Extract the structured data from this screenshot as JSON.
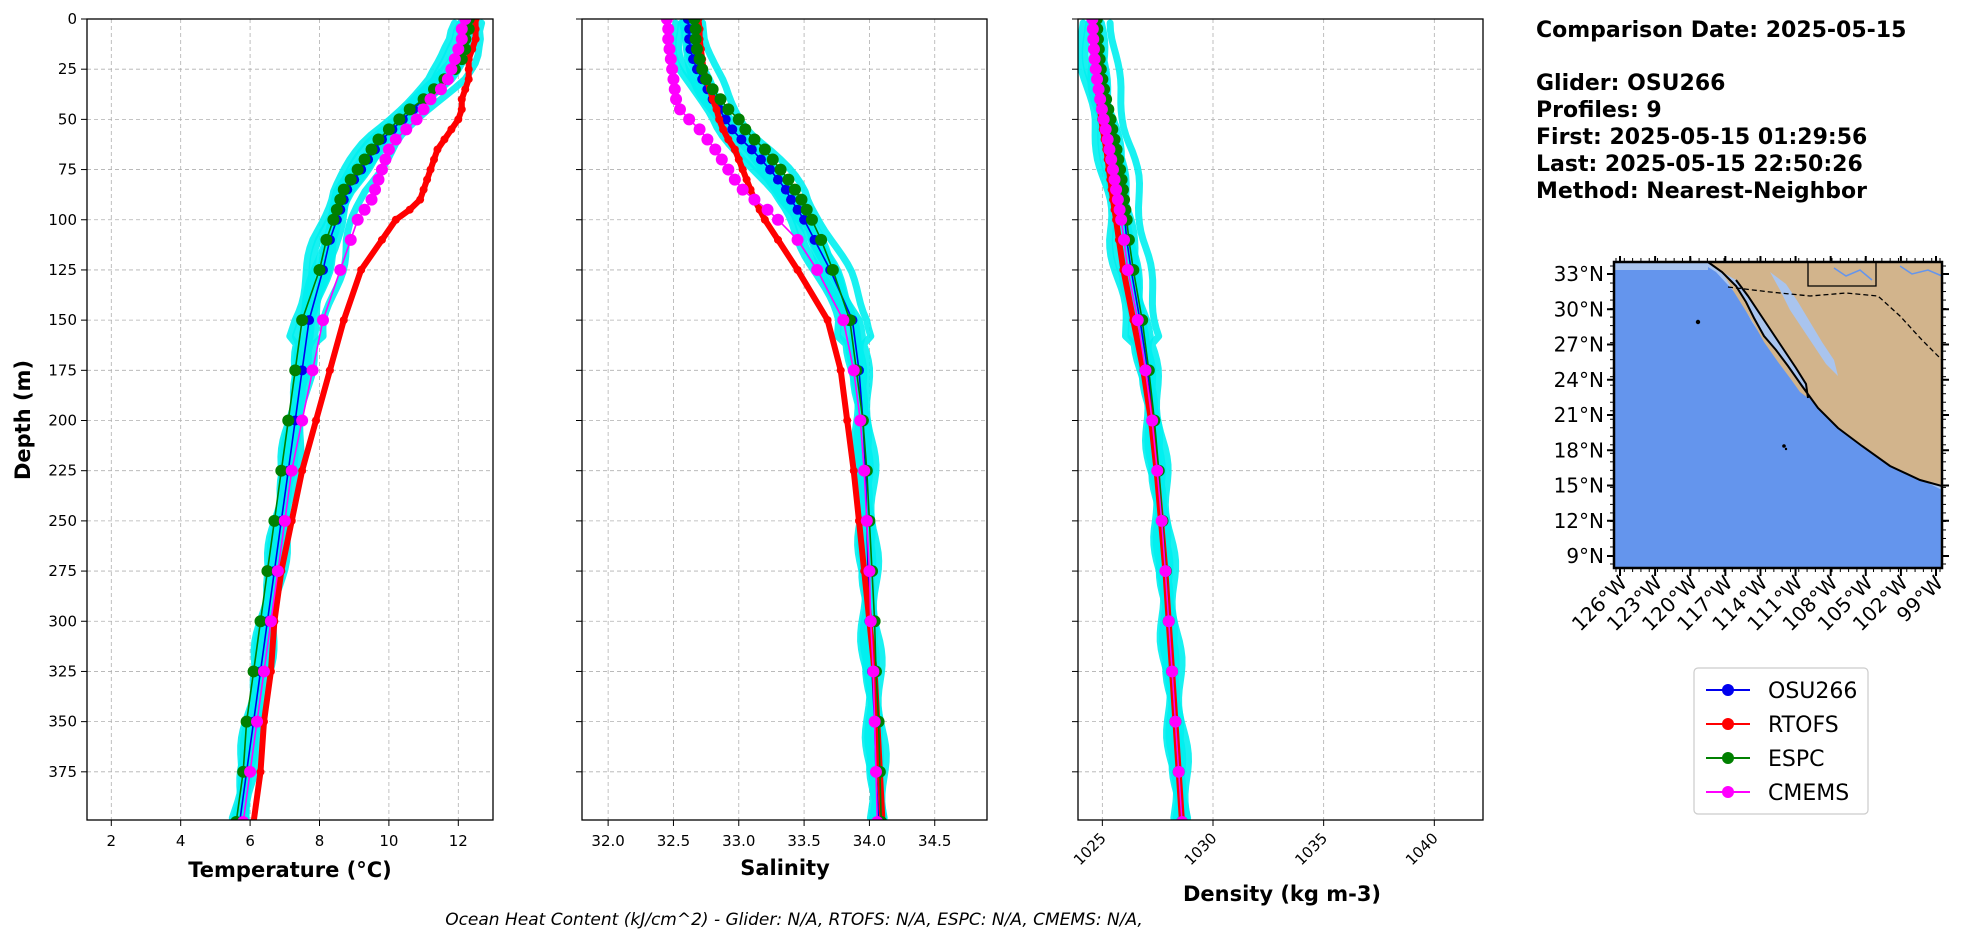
{
  "info": {
    "comparison_date": "Comparison Date: 2025-05-15",
    "glider": "Glider: OSU266",
    "profiles": "Profiles: 9",
    "first": "First: 2025-05-15 01:29:56",
    "last": "Last: 2025-05-15 22:50:26",
    "method": "Method: Nearest-Neighbor"
  },
  "footer": "Ocean Heat Content (kJ/cm^2) - Glider: N/A,  RTOFS: N/A,  ESPC: N/A,  CMEMS: N/A,",
  "colors": {
    "glider_raw": "#00f0f0",
    "OSU266": "#0000ee",
    "RTOFS": "#ff0000",
    "ESPC": "#008000",
    "CMEMS": "#ff00ff",
    "ocean": "#6495ed",
    "shelf": "#a9c4ee",
    "land": "#d2b48c"
  },
  "map": {
    "lat_ticks": [
      "33°N",
      "30°N",
      "27°N",
      "24°N",
      "21°N",
      "18°N",
      "15°N",
      "12°N",
      "9°N"
    ],
    "lon_ticks": [
      "126°W",
      "123°W",
      "120°W",
      "117°W",
      "114°W",
      "111°W",
      "108°W",
      "105°W",
      "102°W",
      "99°W"
    ]
  },
  "legend": [
    "OSU266",
    "RTOFS",
    "ESPC",
    "CMEMS"
  ],
  "chart_data": [
    {
      "type": "line",
      "xlabel": "Temperature (°C)",
      "ylabel": "Depth (m)",
      "xlim": [
        1.3,
        13.0
      ],
      "ylim": [
        399,
        0
      ],
      "xticks": [
        2,
        4,
        6,
        8,
        10,
        12
      ],
      "yticks": [
        0,
        25,
        50,
        75,
        100,
        125,
        150,
        175,
        200,
        225,
        250,
        275,
        300,
        325,
        350,
        375
      ],
      "grid": true,
      "depth": [
        0,
        5,
        10,
        15,
        20,
        25,
        30,
        35,
        40,
        45,
        50,
        55,
        60,
        65,
        70,
        75,
        80,
        85,
        90,
        95,
        100,
        110,
        125,
        150,
        175,
        200,
        225,
        250,
        275,
        300,
        325,
        350,
        375,
        400
      ],
      "series": [
        {
          "name": "OSU266",
          "values": [
            12.3,
            12.2,
            12.2,
            12.1,
            12.0,
            11.8,
            11.6,
            11.3,
            11.0,
            10.7,
            10.4,
            10.1,
            9.8,
            9.6,
            9.4,
            9.2,
            9.0,
            8.8,
            8.7,
            8.6,
            8.5,
            8.3,
            8.1,
            7.7,
            7.5,
            7.3,
            7.1,
            6.9,
            6.7,
            6.5,
            6.3,
            6.1,
            5.9,
            5.7
          ]
        },
        {
          "name": "RTOFS",
          "values": [
            12.5,
            12.5,
            12.5,
            12.4,
            12.3,
            12.3,
            12.3,
            12.2,
            12.1,
            12.1,
            12.0,
            11.8,
            11.6,
            11.4,
            11.3,
            11.2,
            11.1,
            11.0,
            10.9,
            10.6,
            10.2,
            9.8,
            9.2,
            8.7,
            8.3,
            7.9,
            7.5,
            7.2,
            6.9,
            6.7,
            6.6,
            6.4,
            6.3,
            6.1
          ]
        },
        {
          "name": "ESPC",
          "values": [
            12.3,
            12.3,
            12.2,
            12.2,
            12.1,
            11.9,
            11.6,
            11.3,
            11.0,
            10.6,
            10.3,
            10.0,
            9.7,
            9.5,
            9.3,
            9.1,
            8.9,
            8.7,
            8.6,
            8.5,
            8.4,
            8.2,
            8.0,
            7.5,
            7.3,
            7.1,
            6.9,
            6.7,
            6.5,
            6.3,
            6.1,
            5.9,
            5.8,
            5.6
          ]
        },
        {
          "name": "CMEMS",
          "values": [
            12.2,
            12.1,
            12.1,
            12.0,
            11.9,
            11.8,
            11.7,
            11.5,
            11.2,
            11.0,
            10.8,
            10.5,
            10.2,
            10.0,
            9.9,
            9.8,
            9.7,
            9.6,
            9.5,
            9.3,
            9.1,
            8.9,
            8.6,
            8.1,
            7.8,
            7.5,
            7.2,
            7.0,
            6.8,
            6.6,
            6.4,
            6.2,
            6.0,
            5.8
          ]
        }
      ]
    },
    {
      "type": "line",
      "xlabel": "Salinity",
      "xlim": [
        31.8,
        34.9
      ],
      "ylim": [
        399,
        0
      ],
      "xticks": [
        32.0,
        32.5,
        33.0,
        33.5,
        34.0,
        34.5
      ],
      "grid": true,
      "depth": [
        0,
        5,
        10,
        15,
        20,
        25,
        30,
        35,
        40,
        45,
        50,
        55,
        60,
        65,
        70,
        75,
        80,
        85,
        90,
        95,
        100,
        110,
        125,
        150,
        175,
        200,
        225,
        250,
        275,
        300,
        325,
        350,
        375,
        400
      ],
      "series": [
        {
          "name": "OSU266",
          "values": [
            32.61,
            32.62,
            32.62,
            32.63,
            32.65,
            32.68,
            32.72,
            32.76,
            32.8,
            32.85,
            32.9,
            32.95,
            33.02,
            33.1,
            33.17,
            33.24,
            33.3,
            33.36,
            33.4,
            33.45,
            33.5,
            33.58,
            33.7,
            33.87,
            33.92,
            33.95,
            33.97,
            33.98,
            33.99,
            34.0,
            34.02,
            34.04,
            34.05,
            34.07
          ]
        },
        {
          "name": "RTOFS",
          "values": [
            32.69,
            32.7,
            32.7,
            32.71,
            32.72,
            32.73,
            32.75,
            32.78,
            32.8,
            32.83,
            32.85,
            32.88,
            32.92,
            32.97,
            33.0,
            33.03,
            33.06,
            33.09,
            33.12,
            33.16,
            33.2,
            33.3,
            33.45,
            33.68,
            33.78,
            33.83,
            33.88,
            33.92,
            33.96,
            34.0,
            34.04,
            34.06,
            34.08,
            34.1
          ]
        },
        {
          "name": "ESPC",
          "values": [
            32.66,
            32.67,
            32.67,
            32.68,
            32.7,
            32.72,
            32.75,
            32.8,
            32.86,
            32.92,
            33.0,
            33.05,
            33.12,
            33.2,
            33.26,
            33.32,
            33.38,
            33.43,
            33.48,
            33.52,
            33.56,
            33.63,
            33.72,
            33.85,
            33.9,
            33.95,
            33.98,
            34.0,
            34.02,
            34.04,
            34.05,
            34.07,
            34.08,
            34.09
          ]
        },
        {
          "name": "CMEMS",
          "values": [
            32.45,
            32.46,
            32.46,
            32.47,
            32.48,
            32.49,
            32.5,
            32.51,
            32.52,
            32.55,
            32.62,
            32.7,
            32.76,
            32.82,
            32.87,
            32.92,
            32.97,
            33.03,
            33.12,
            33.22,
            33.3,
            33.45,
            33.6,
            33.8,
            33.88,
            33.93,
            33.96,
            33.98,
            34.0,
            34.01,
            34.03,
            34.04,
            34.05,
            34.06
          ]
        }
      ]
    },
    {
      "type": "line",
      "xlabel": "Density (kg m-3)",
      "xlim": [
        1023.9,
        1042.2
      ],
      "ylim": [
        399,
        0
      ],
      "xticks": [
        1025,
        1030,
        1035,
        1040
      ],
      "grid": true,
      "depth": [
        0,
        5,
        10,
        15,
        20,
        25,
        30,
        35,
        40,
        45,
        50,
        55,
        60,
        65,
        70,
        75,
        80,
        85,
        90,
        95,
        100,
        110,
        125,
        150,
        175,
        200,
        225,
        250,
        275,
        300,
        325,
        350,
        375,
        400
      ],
      "series": [
        {
          "name": "OSU266",
          "values": [
            1024.7,
            1024.72,
            1024.74,
            1024.77,
            1024.8,
            1024.84,
            1024.9,
            1024.97,
            1025.05,
            1025.15,
            1025.25,
            1025.33,
            1025.42,
            1025.52,
            1025.6,
            1025.68,
            1025.76,
            1025.83,
            1025.9,
            1025.96,
            1026.02,
            1026.1,
            1026.3,
            1026.7,
            1027.05,
            1027.3,
            1027.5,
            1027.7,
            1027.85,
            1028.0,
            1028.15,
            1028.3,
            1028.45,
            1028.6
          ]
        },
        {
          "name": "RTOFS",
          "values": [
            1024.6,
            1024.62,
            1024.64,
            1024.66,
            1024.69,
            1024.72,
            1024.76,
            1024.8,
            1024.85,
            1024.9,
            1024.95,
            1025.02,
            1025.1,
            1025.18,
            1025.24,
            1025.3,
            1025.36,
            1025.42,
            1025.48,
            1025.55,
            1025.62,
            1025.75,
            1025.95,
            1026.4,
            1026.85,
            1027.2,
            1027.45,
            1027.65,
            1027.85,
            1028.0,
            1028.15,
            1028.3,
            1028.45,
            1028.6
          ]
        },
        {
          "name": "ESPC",
          "values": [
            1024.75,
            1024.77,
            1024.8,
            1024.84,
            1024.88,
            1024.93,
            1025.0,
            1025.08,
            1025.17,
            1025.27,
            1025.37,
            1025.45,
            1025.55,
            1025.64,
            1025.72,
            1025.8,
            1025.87,
            1025.93,
            1025.98,
            1026.04,
            1026.1,
            1026.2,
            1026.4,
            1026.8,
            1027.1,
            1027.35,
            1027.55,
            1027.72,
            1027.87,
            1028.0,
            1028.15,
            1028.3,
            1028.45,
            1028.6
          ]
        },
        {
          "name": "CMEMS",
          "values": [
            1024.55,
            1024.57,
            1024.59,
            1024.62,
            1024.65,
            1024.7,
            1024.76,
            1024.83,
            1024.9,
            1024.98,
            1025.06,
            1025.15,
            1025.24,
            1025.32,
            1025.4,
            1025.48,
            1025.55,
            1025.62,
            1025.7,
            1025.78,
            1025.85,
            1025.98,
            1026.15,
            1026.6,
            1026.95,
            1027.25,
            1027.48,
            1027.68,
            1027.85,
            1028.0,
            1028.15,
            1028.3,
            1028.45,
            1028.6
          ]
        }
      ]
    }
  ]
}
